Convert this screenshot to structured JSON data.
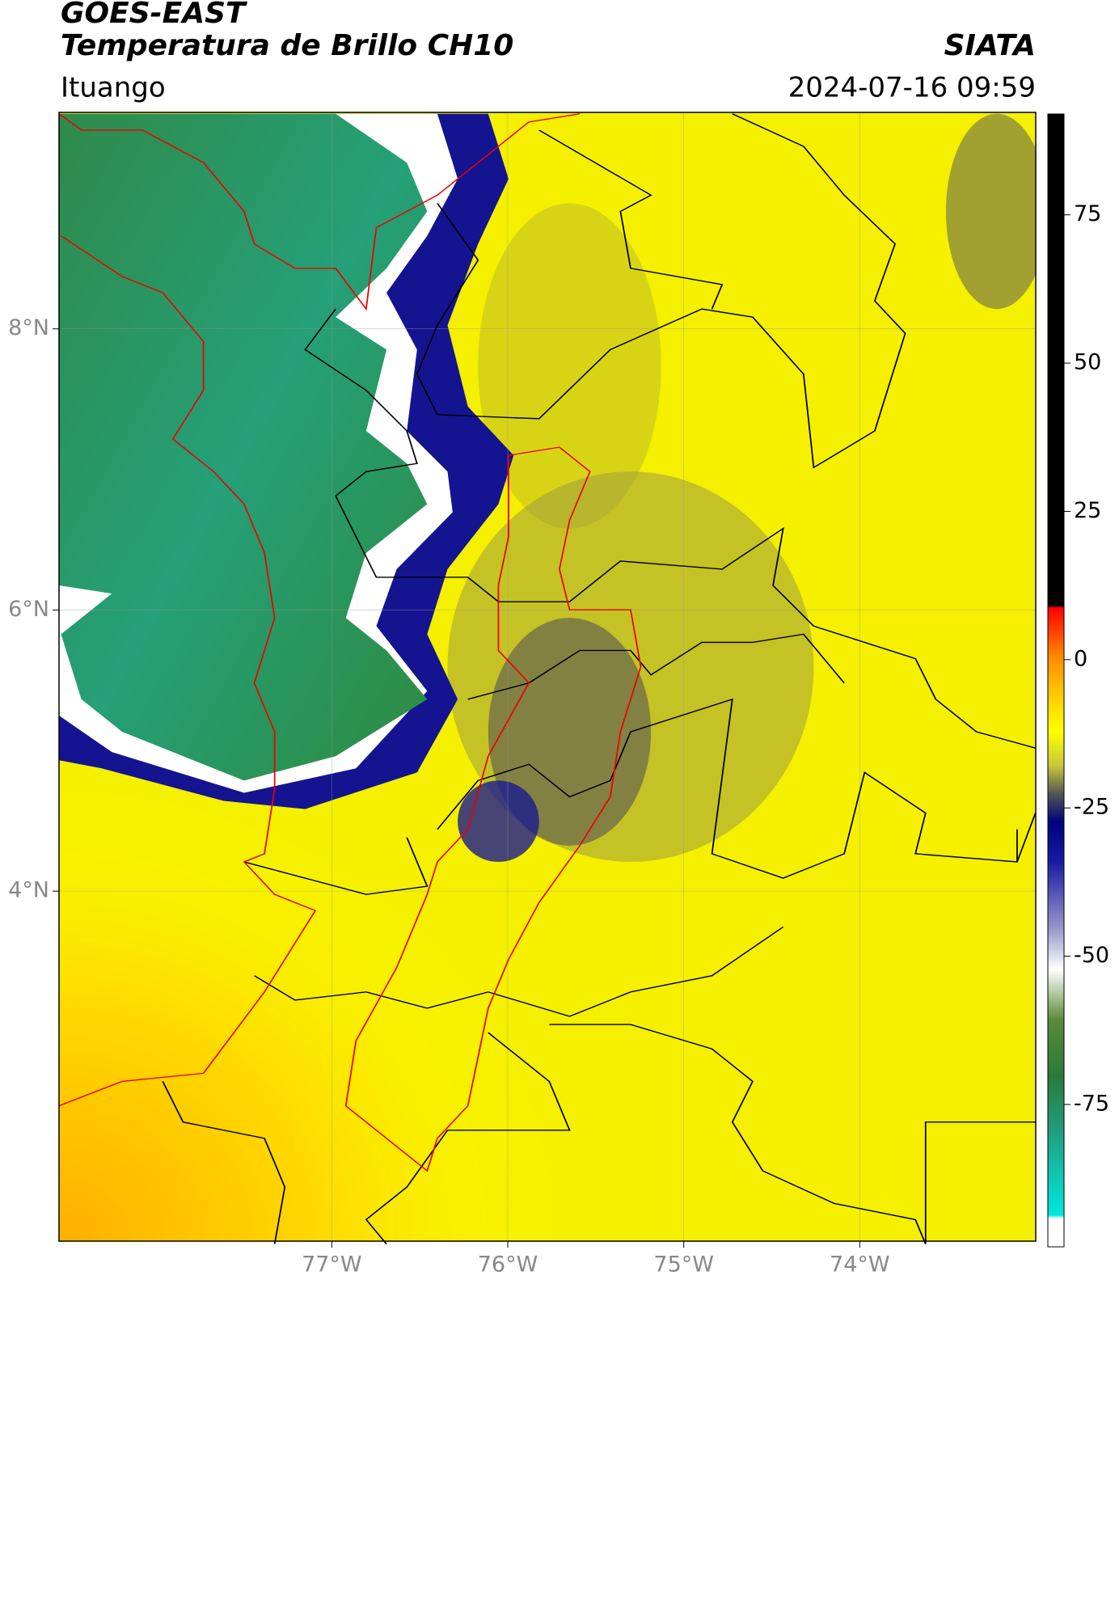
{
  "header": {
    "title": "GOES-EAST",
    "subtitle": "Temperatura de Brillo CH10",
    "brand": "SIATA",
    "region": "Ituango",
    "datetime": "2024-07-16 09:59"
  },
  "map": {
    "xlim": [
      -78.55,
      -73.0
    ],
    "ylim": [
      1.51,
      9.54
    ],
    "xticks": [
      {
        "value": -77,
        "label": "77°W"
      },
      {
        "value": -76,
        "label": "76°W"
      },
      {
        "value": -75,
        "label": "75°W"
      },
      {
        "value": -74,
        "label": "74°W"
      }
    ],
    "yticks": [
      {
        "value": 4,
        "label": "4°N"
      },
      {
        "value": 6,
        "label": "6°N"
      },
      {
        "value": 8,
        "label": "8°N"
      }
    ],
    "grid": true
  },
  "colorbar": {
    "lim": [
      -99,
      92
    ],
    "ticks": [
      -75,
      -50,
      -25,
      0,
      25,
      50,
      75
    ]
  }
}
